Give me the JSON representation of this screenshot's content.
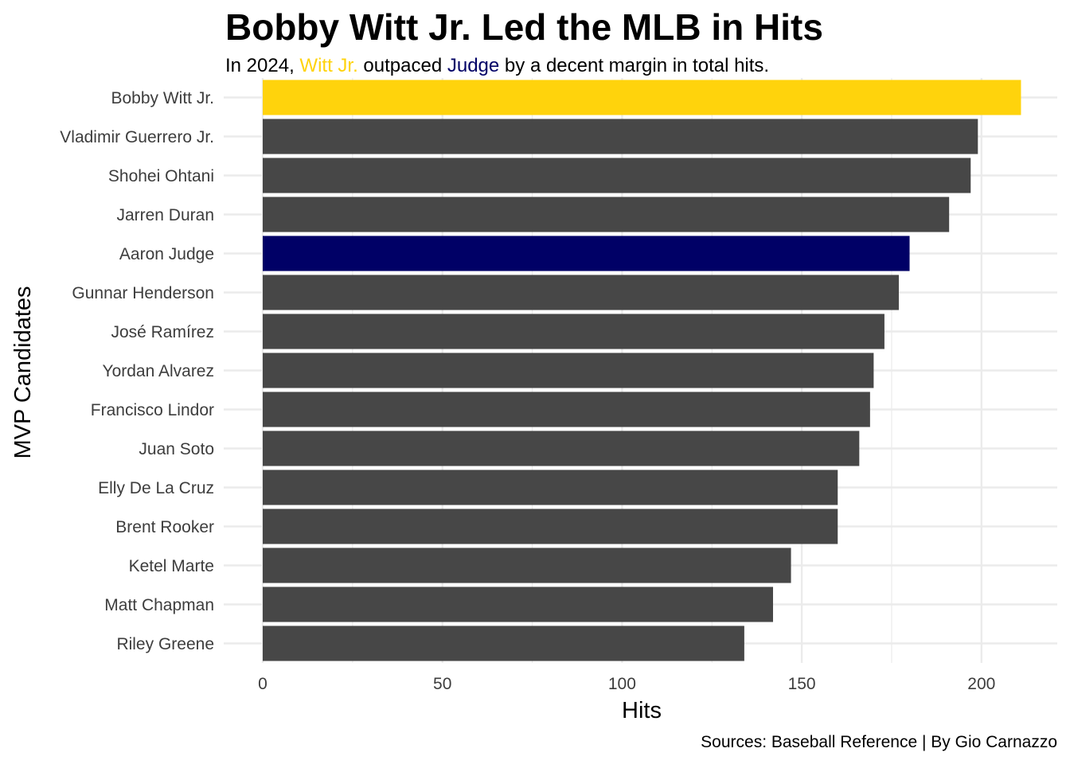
{
  "chart_data": {
    "type": "bar",
    "orientation": "horizontal",
    "title": "Bobby Witt Jr. Led the MLB in Hits",
    "subtitle": {
      "prefix": "In 2024,",
      "highlight_1": "Witt Jr.",
      "middle": "outpaced",
      "highlight_2": "Judge",
      "suffix": "by a decent margin in total hits."
    },
    "caption": "Sources: Baseball Reference | By Gio Carnazzo",
    "xlabel": "Hits",
    "ylabel": "MVP Candidates",
    "xlim": [
      0,
      211
    ],
    "x_ticks": [
      0,
      50,
      100,
      150,
      200
    ],
    "grid": true,
    "legend": "none",
    "colors": {
      "default": "#474747",
      "witt": "#FFD30C",
      "judge": "#000066",
      "grid": "#ebebeb"
    },
    "categories": [
      "Bobby Witt Jr.",
      "Vladimir Guerrero Jr.",
      "Shohei Ohtani",
      "Jarren Duran",
      "Aaron Judge",
      "Gunnar Henderson",
      "José Ramírez",
      "Yordan Alvarez",
      "Francisco Lindor",
      "Juan Soto",
      "Elly De La Cruz",
      "Brent Rooker",
      "Ketel Marte",
      "Matt Chapman",
      "Riley Greene"
    ],
    "values": [
      211,
      199,
      197,
      191,
      180,
      177,
      173,
      170,
      169,
      166,
      160,
      160,
      147,
      142,
      134
    ],
    "bar_colors": [
      "witt",
      "default",
      "default",
      "default",
      "judge",
      "default",
      "default",
      "default",
      "default",
      "default",
      "default",
      "default",
      "default",
      "default",
      "default"
    ]
  }
}
